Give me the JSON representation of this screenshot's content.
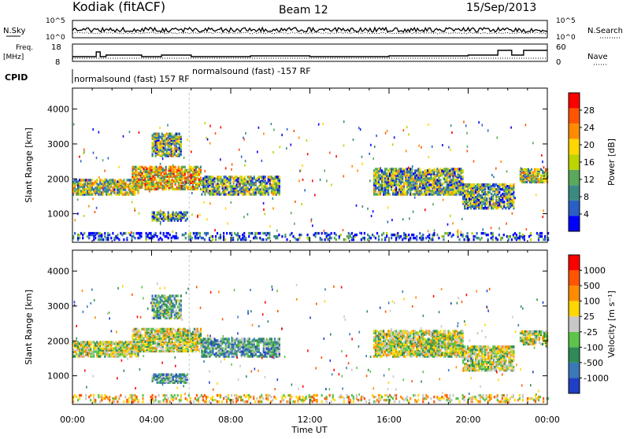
{
  "header": {
    "station": "Kodiak (fitACF)",
    "beam": "Beam 12",
    "date": "15/Sep/2013"
  },
  "summary": {
    "nsky_label": "N.Sky",
    "nsearch_label": "N.Search",
    "freq_label_1": "Freq.",
    "freq_label_2": "[MHz]",
    "nave_label": "Nave",
    "cpid_label": "CPID",
    "noise_ticks_left": [
      "10^5",
      "10^0"
    ],
    "noise_ticks_right": [
      "10^5",
      "10^0"
    ],
    "freq_ticks": [
      "18",
      "8"
    ],
    "nave_ticks": [
      "60",
      "0"
    ],
    "cpid_entries": [
      {
        "text": "normalsound (fast) 157 RF",
        "start_hour": 0.0
      },
      {
        "text": "normalsound (fast) -157 RF",
        "start_hour": 5.9
      }
    ]
  },
  "chart_data": [
    {
      "type": "heatmap",
      "panel": "power",
      "ylabel": "Slant Range [km]",
      "xlabel": "",
      "ylim": [
        180,
        4600
      ],
      "yticks": [
        1000,
        2000,
        3000,
        4000
      ],
      "xlim_hours": [
        0,
        24
      ],
      "colorbar": {
        "label": "Power [dB]",
        "range": [
          0,
          32
        ],
        "tick_labels": [
          "4",
          "8",
          "12",
          "16",
          "20",
          "24",
          "28"
        ],
        "colors": [
          "#0000ff",
          "#2a5fc4",
          "#3a8a82",
          "#5aa85a",
          "#bcd400",
          "#ffd700",
          "#ff8c00",
          "#ff5500",
          "#ff0000"
        ]
      },
      "regions": [
        {
          "t0": 0.0,
          "t1": 3.3,
          "r0": 1550,
          "r1": 2000,
          "level": 0.45
        },
        {
          "t0": 3.0,
          "t1": 6.5,
          "r0": 1700,
          "r1": 2350,
          "level": 0.6
        },
        {
          "t0": 6.5,
          "t1": 10.5,
          "r0": 1550,
          "r1": 2050,
          "level": 0.35
        },
        {
          "t0": 4.0,
          "t1": 5.5,
          "r0": 2650,
          "r1": 3300,
          "level": 0.4
        },
        {
          "t0": 4.0,
          "t1": 5.8,
          "r0": 800,
          "r1": 1050,
          "level": 0.3
        },
        {
          "t0": 15.2,
          "t1": 19.7,
          "r0": 1550,
          "r1": 2300,
          "level": 0.4
        },
        {
          "t0": 19.7,
          "t1": 22.3,
          "r0": 1150,
          "r1": 1850,
          "level": 0.35
        },
        {
          "t0": 22.6,
          "t1": 24.0,
          "r0": 1900,
          "r1": 2300,
          "level": 0.45
        },
        {
          "t0": 0.0,
          "t1": 24.0,
          "r0": 250,
          "r1": 450,
          "level": 0.15
        }
      ]
    },
    {
      "type": "heatmap",
      "panel": "velocity",
      "ylabel": "Slant Range [km]",
      "xlabel": "Time UT",
      "ylim": [
        180,
        4600
      ],
      "yticks": [
        1000,
        2000,
        3000,
        4000
      ],
      "xlim_hours": [
        0,
        24
      ],
      "x_tick_labels": [
        "00:00",
        "04:00",
        "08:00",
        "12:00",
        "16:00",
        "20:00",
        "00:00"
      ],
      "colorbar": {
        "label": "Velocity [m s⁻¹]",
        "tick_labels": [
          "1000",
          "500",
          "100",
          "25",
          "-25",
          "-100",
          "-500",
          "-1000"
        ],
        "colors": [
          "#1f3fc4",
          "#3a78b8",
          "#2e8b57",
          "#5cc44a",
          "#c8c8c8",
          "#ffd700",
          "#ff8c00",
          "#ff5500",
          "#ff0000"
        ]
      },
      "regions": [
        {
          "t0": 0.0,
          "t1": 3.3,
          "r0": 1550,
          "r1": 2000,
          "level": 0.5
        },
        {
          "t0": 3.0,
          "t1": 6.5,
          "r0": 1700,
          "r1": 2350,
          "level": 0.5
        },
        {
          "t0": 6.5,
          "t1": 10.5,
          "r0": 1550,
          "r1": 2050,
          "level": 0.3
        },
        {
          "t0": 4.0,
          "t1": 5.5,
          "r0": 2650,
          "r1": 3300,
          "level": 0.35
        },
        {
          "t0": 4.0,
          "t1": 5.8,
          "r0": 800,
          "r1": 1050,
          "level": 0.3
        },
        {
          "t0": 15.2,
          "t1": 19.7,
          "r0": 1550,
          "r1": 2300,
          "level": 0.5
        },
        {
          "t0": 19.7,
          "t1": 22.3,
          "r0": 1150,
          "r1": 1850,
          "level": 0.5
        },
        {
          "t0": 22.6,
          "t1": 24.0,
          "r0": 1900,
          "r1": 2300,
          "level": 0.5
        },
        {
          "t0": 0.0,
          "t1": 24.0,
          "r0": 250,
          "r1": 450,
          "level": 0.6
        }
      ]
    }
  ]
}
